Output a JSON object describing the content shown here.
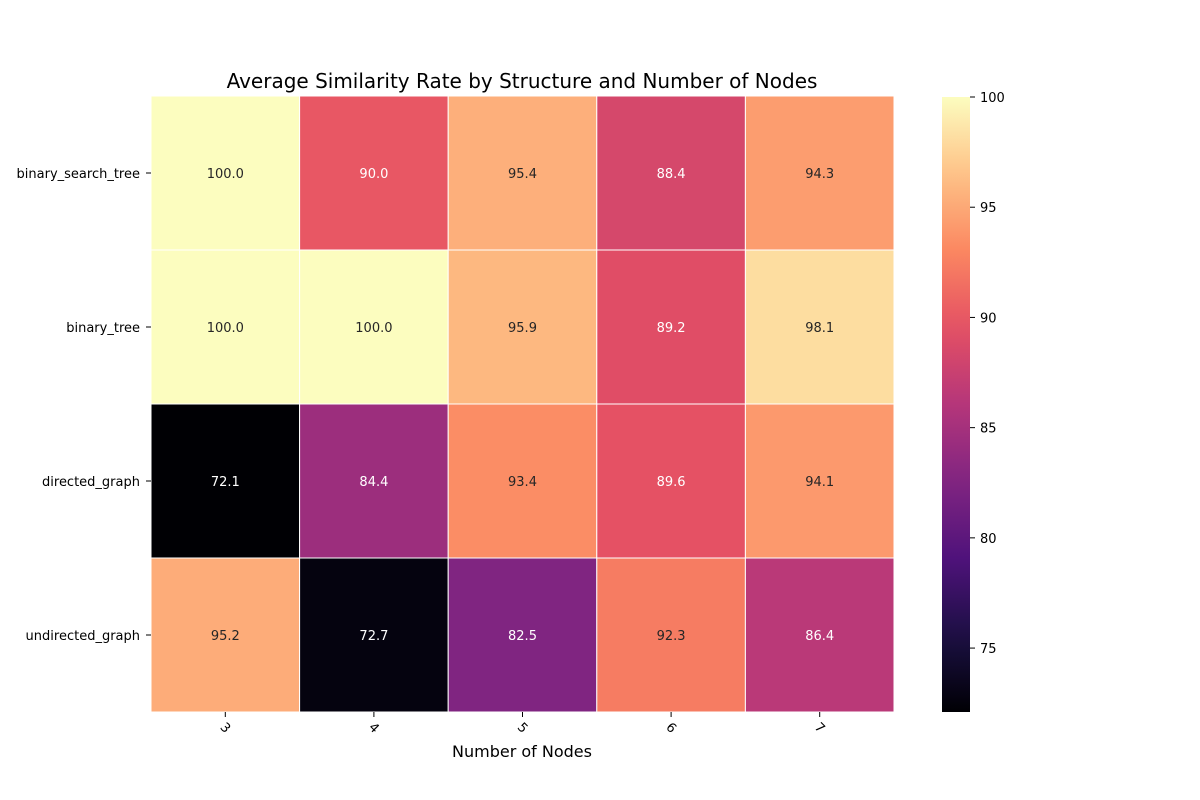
{
  "chart_data": {
    "type": "heatmap",
    "title": "Average Similarity Rate by Structure and Number of Nodes",
    "xlabel": "Number of Nodes",
    "ylabel": "",
    "x_categories": [
      "3",
      "4",
      "5",
      "6",
      "7"
    ],
    "y_categories": [
      "binary_search_tree",
      "binary_tree",
      "directed_graph",
      "undirected_graph"
    ],
    "values": [
      [
        100.0,
        90.0,
        95.4,
        88.4,
        94.3
      ],
      [
        100.0,
        100.0,
        95.9,
        89.2,
        98.1
      ],
      [
        72.1,
        84.4,
        93.4,
        89.6,
        94.1
      ],
      [
        95.2,
        72.7,
        82.5,
        92.3,
        86.4
      ]
    ],
    "value_format": "0.0",
    "colormap": "magma",
    "color_range": [
      72.1,
      100.0
    ],
    "colorbar_ticks": [
      "75",
      "80",
      "85",
      "90",
      "95",
      "100"
    ],
    "cell_gridlines": true
  }
}
